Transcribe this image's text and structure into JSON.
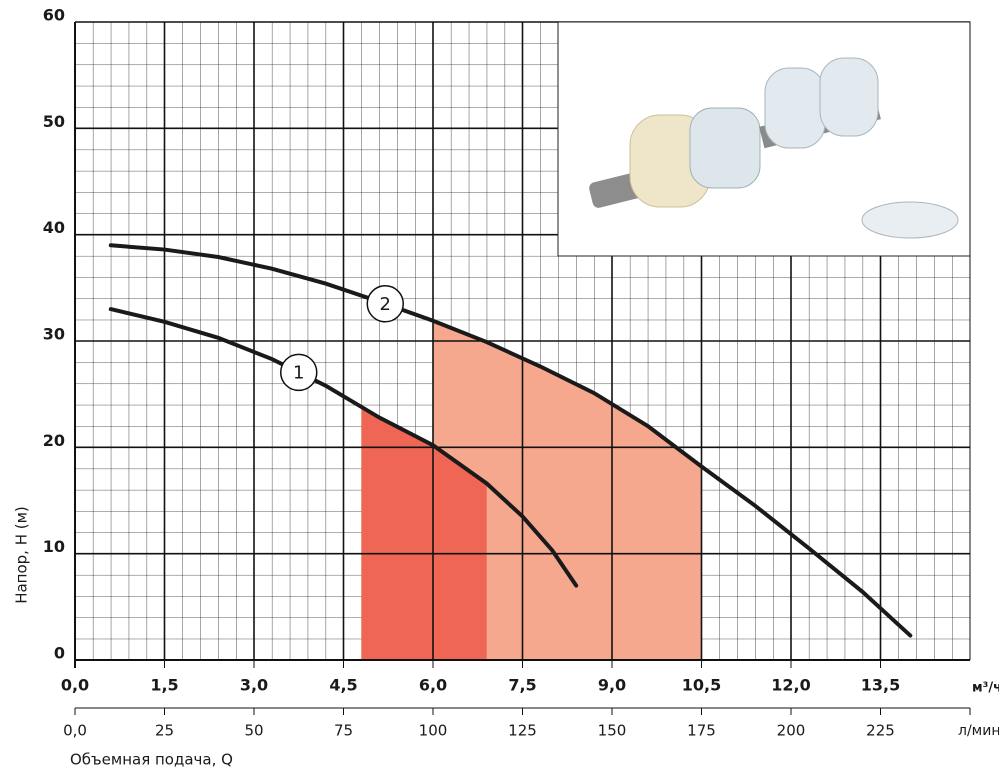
{
  "chart_data": {
    "type": "line",
    "y_label": "Напор, H (м)",
    "x_label": "Объемная подача, Q",
    "x_unit": "м³/ч",
    "x2_unit": "л/мин",
    "xlim": [
      0,
      15
    ],
    "ylim": [
      0,
      60
    ],
    "x2lim": [
      0,
      250
    ],
    "xticks": [
      {
        "value": 0,
        "label": "0,0"
      },
      {
        "value": 1.5,
        "label": "1,5"
      },
      {
        "value": 3,
        "label": "3,0"
      },
      {
        "value": 4.5,
        "label": "4,5"
      },
      {
        "value": 6,
        "label": "6,0"
      },
      {
        "value": 7.5,
        "label": "7,5"
      },
      {
        "value": 9,
        "label": "9,0"
      },
      {
        "value": 10.5,
        "label": "10,5"
      },
      {
        "value": 12,
        "label": "12,0"
      },
      {
        "value": 13.5,
        "label": "13,5"
      }
    ],
    "yticks": [
      0,
      10,
      20,
      30,
      40,
      50,
      60
    ],
    "x2ticks": [
      {
        "value": 0,
        "label": "0,0"
      },
      25,
      50,
      75,
      100,
      125,
      150,
      175,
      200,
      225
    ],
    "grid": true,
    "series": [
      {
        "name": "1",
        "color": "#1a1a1a",
        "x": [
          0.6,
          1.5,
          2.4,
          3.3,
          4.2,
          5.1,
          6.0,
          6.9,
          7.5,
          8.0,
          8.4
        ],
        "values": [
          33,
          31.8,
          30.3,
          28.3,
          25.8,
          22.8,
          20.2,
          16.6,
          13.5,
          10.3,
          7
        ]
      },
      {
        "name": "2",
        "color": "#1a1a1a",
        "x": [
          0.6,
          1.5,
          2.4,
          3.3,
          4.2,
          5.1,
          6.0,
          6.9,
          7.8,
          8.7,
          9.6,
          10.5,
          11.4,
          12.3,
          13.2,
          14.0
        ],
        "values": [
          39,
          38.6,
          37.9,
          36.8,
          35.4,
          33.7,
          31.9,
          29.9,
          27.6,
          25.1,
          22,
          18.2,
          14.5,
          10.5,
          6.4,
          2.3
        ]
      }
    ],
    "shaded": [
      {
        "series": 1,
        "x": [
          6.0,
          10.5
        ],
        "color": "#f5a88e"
      },
      {
        "series": 0,
        "x": [
          4.8,
          6.9
        ],
        "color": "#ef6654"
      }
    ]
  }
}
